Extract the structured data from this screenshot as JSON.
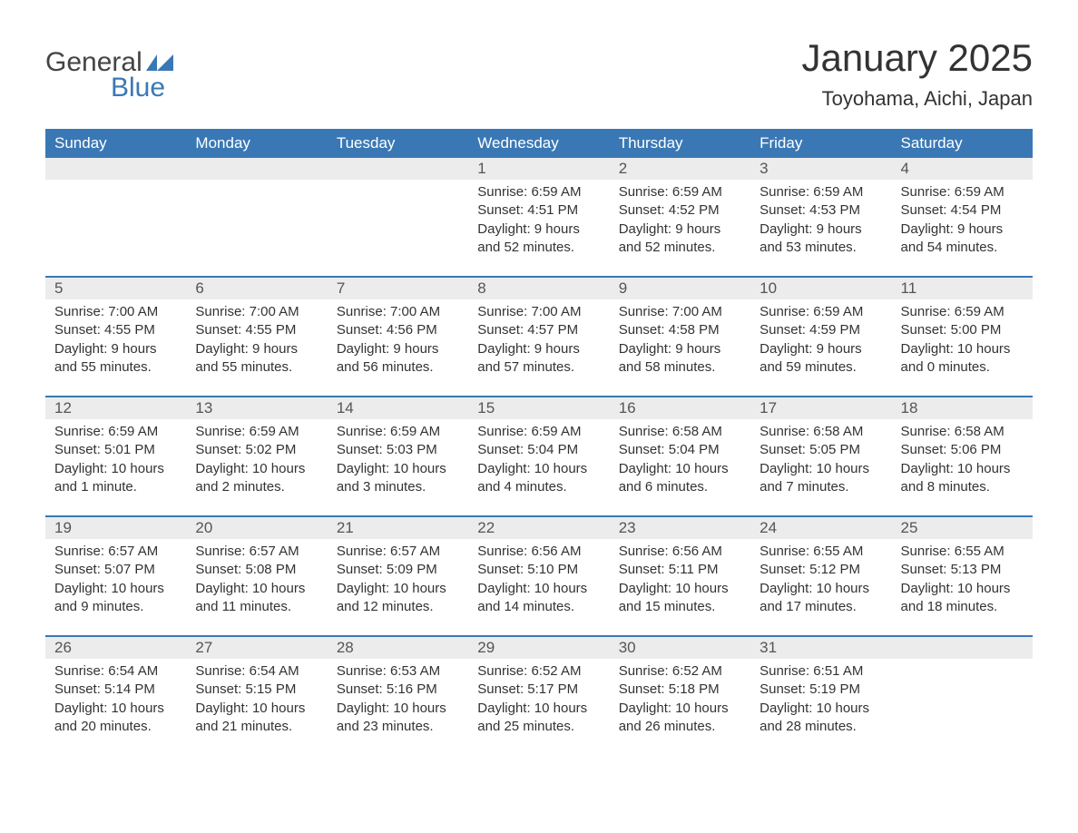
{
  "logo": {
    "general": "General",
    "blue": "Blue",
    "flag_color": "#3a78b5"
  },
  "title": "January 2025",
  "location": "Toyohama, Aichi, Japan",
  "weekdays": [
    "Sunday",
    "Monday",
    "Tuesday",
    "Wednesday",
    "Thursday",
    "Friday",
    "Saturday"
  ],
  "colors": {
    "header_bg": "#3a78b5",
    "header_fg": "#ffffff",
    "daynum_bg": "#ececec",
    "text": "#333333",
    "rule": "#3a78b5"
  },
  "weeks": [
    [
      {
        "n": "",
        "sr": "",
        "ss": "",
        "dl": ""
      },
      {
        "n": "",
        "sr": "",
        "ss": "",
        "dl": ""
      },
      {
        "n": "",
        "sr": "",
        "ss": "",
        "dl": ""
      },
      {
        "n": "1",
        "sr": "Sunrise: 6:59 AM",
        "ss": "Sunset: 4:51 PM",
        "dl": "Daylight: 9 hours and 52 minutes."
      },
      {
        "n": "2",
        "sr": "Sunrise: 6:59 AM",
        "ss": "Sunset: 4:52 PM",
        "dl": "Daylight: 9 hours and 52 minutes."
      },
      {
        "n": "3",
        "sr": "Sunrise: 6:59 AM",
        "ss": "Sunset: 4:53 PM",
        "dl": "Daylight: 9 hours and 53 minutes."
      },
      {
        "n": "4",
        "sr": "Sunrise: 6:59 AM",
        "ss": "Sunset: 4:54 PM",
        "dl": "Daylight: 9 hours and 54 minutes."
      }
    ],
    [
      {
        "n": "5",
        "sr": "Sunrise: 7:00 AM",
        "ss": "Sunset: 4:55 PM",
        "dl": "Daylight: 9 hours and 55 minutes."
      },
      {
        "n": "6",
        "sr": "Sunrise: 7:00 AM",
        "ss": "Sunset: 4:55 PM",
        "dl": "Daylight: 9 hours and 55 minutes."
      },
      {
        "n": "7",
        "sr": "Sunrise: 7:00 AM",
        "ss": "Sunset: 4:56 PM",
        "dl": "Daylight: 9 hours and 56 minutes."
      },
      {
        "n": "8",
        "sr": "Sunrise: 7:00 AM",
        "ss": "Sunset: 4:57 PM",
        "dl": "Daylight: 9 hours and 57 minutes."
      },
      {
        "n": "9",
        "sr": "Sunrise: 7:00 AM",
        "ss": "Sunset: 4:58 PM",
        "dl": "Daylight: 9 hours and 58 minutes."
      },
      {
        "n": "10",
        "sr": "Sunrise: 6:59 AM",
        "ss": "Sunset: 4:59 PM",
        "dl": "Daylight: 9 hours and 59 minutes."
      },
      {
        "n": "11",
        "sr": "Sunrise: 6:59 AM",
        "ss": "Sunset: 5:00 PM",
        "dl": "Daylight: 10 hours and 0 minutes."
      }
    ],
    [
      {
        "n": "12",
        "sr": "Sunrise: 6:59 AM",
        "ss": "Sunset: 5:01 PM",
        "dl": "Daylight: 10 hours and 1 minute."
      },
      {
        "n": "13",
        "sr": "Sunrise: 6:59 AM",
        "ss": "Sunset: 5:02 PM",
        "dl": "Daylight: 10 hours and 2 minutes."
      },
      {
        "n": "14",
        "sr": "Sunrise: 6:59 AM",
        "ss": "Sunset: 5:03 PM",
        "dl": "Daylight: 10 hours and 3 minutes."
      },
      {
        "n": "15",
        "sr": "Sunrise: 6:59 AM",
        "ss": "Sunset: 5:04 PM",
        "dl": "Daylight: 10 hours and 4 minutes."
      },
      {
        "n": "16",
        "sr": "Sunrise: 6:58 AM",
        "ss": "Sunset: 5:04 PM",
        "dl": "Daylight: 10 hours and 6 minutes."
      },
      {
        "n": "17",
        "sr": "Sunrise: 6:58 AM",
        "ss": "Sunset: 5:05 PM",
        "dl": "Daylight: 10 hours and 7 minutes."
      },
      {
        "n": "18",
        "sr": "Sunrise: 6:58 AM",
        "ss": "Sunset: 5:06 PM",
        "dl": "Daylight: 10 hours and 8 minutes."
      }
    ],
    [
      {
        "n": "19",
        "sr": "Sunrise: 6:57 AM",
        "ss": "Sunset: 5:07 PM",
        "dl": "Daylight: 10 hours and 9 minutes."
      },
      {
        "n": "20",
        "sr": "Sunrise: 6:57 AM",
        "ss": "Sunset: 5:08 PM",
        "dl": "Daylight: 10 hours and 11 minutes."
      },
      {
        "n": "21",
        "sr": "Sunrise: 6:57 AM",
        "ss": "Sunset: 5:09 PM",
        "dl": "Daylight: 10 hours and 12 minutes."
      },
      {
        "n": "22",
        "sr": "Sunrise: 6:56 AM",
        "ss": "Sunset: 5:10 PM",
        "dl": "Daylight: 10 hours and 14 minutes."
      },
      {
        "n": "23",
        "sr": "Sunrise: 6:56 AM",
        "ss": "Sunset: 5:11 PM",
        "dl": "Daylight: 10 hours and 15 minutes."
      },
      {
        "n": "24",
        "sr": "Sunrise: 6:55 AM",
        "ss": "Sunset: 5:12 PM",
        "dl": "Daylight: 10 hours and 17 minutes."
      },
      {
        "n": "25",
        "sr": "Sunrise: 6:55 AM",
        "ss": "Sunset: 5:13 PM",
        "dl": "Daylight: 10 hours and 18 minutes."
      }
    ],
    [
      {
        "n": "26",
        "sr": "Sunrise: 6:54 AM",
        "ss": "Sunset: 5:14 PM",
        "dl": "Daylight: 10 hours and 20 minutes."
      },
      {
        "n": "27",
        "sr": "Sunrise: 6:54 AM",
        "ss": "Sunset: 5:15 PM",
        "dl": "Daylight: 10 hours and 21 minutes."
      },
      {
        "n": "28",
        "sr": "Sunrise: 6:53 AM",
        "ss": "Sunset: 5:16 PM",
        "dl": "Daylight: 10 hours and 23 minutes."
      },
      {
        "n": "29",
        "sr": "Sunrise: 6:52 AM",
        "ss": "Sunset: 5:17 PM",
        "dl": "Daylight: 10 hours and 25 minutes."
      },
      {
        "n": "30",
        "sr": "Sunrise: 6:52 AM",
        "ss": "Sunset: 5:18 PM",
        "dl": "Daylight: 10 hours and 26 minutes."
      },
      {
        "n": "31",
        "sr": "Sunrise: 6:51 AM",
        "ss": "Sunset: 5:19 PM",
        "dl": "Daylight: 10 hours and 28 minutes."
      },
      {
        "n": "",
        "sr": "",
        "ss": "",
        "dl": ""
      }
    ]
  ]
}
